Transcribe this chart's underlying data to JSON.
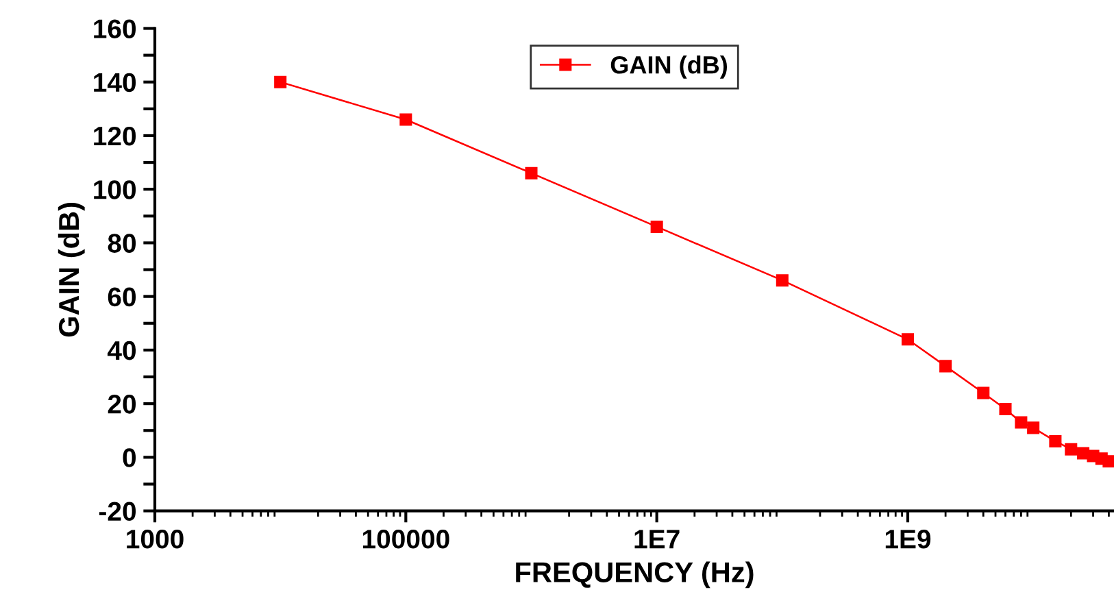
{
  "chart_data": {
    "type": "line",
    "xlabel": "FREQUENCY (Hz)",
    "ylabel": "GAIN (dB)",
    "log": "x",
    "x": [
      10000,
      100000,
      1000000,
      10000000,
      100000000,
      1000000000,
      2000000000,
      4000000000,
      6000000000,
      8000000000,
      10000000000,
      15000000000,
      20000000000,
      25000000000,
      30000000000,
      35000000000,
      40000000000
    ],
    "series": [
      {
        "name": "GAIN (dB)",
        "color": "#ff0000",
        "values": [
          140,
          126,
          106,
          86,
          66,
          44,
          34,
          24,
          18,
          13,
          11,
          6,
          3,
          1.5,
          0.5,
          -0.5,
          -1.5
        ]
      }
    ],
    "xlim": [
      1000,
      44000000000
    ],
    "xticks": [
      {
        "value": 1000,
        "label": "1000"
      },
      {
        "value": 100000,
        "label": "100000"
      },
      {
        "value": 10000000,
        "label": "1E7"
      },
      {
        "value": 1000000000,
        "label": "1E9"
      }
    ],
    "ylim": [
      -20,
      160
    ],
    "yticks": [
      -20,
      {
        "value": -10,
        "label": null
      },
      0,
      {
        "value": 10,
        "label": null
      },
      20,
      {
        "value": 30,
        "label": null
      },
      40,
      {
        "value": 50,
        "label": null
      },
      60,
      {
        "value": 70,
        "label": null
      },
      80,
      {
        "value": 90,
        "label": null
      },
      100,
      {
        "value": 110,
        "label": null
      },
      120,
      {
        "value": 130,
        "label": null
      },
      140,
      {
        "value": 150,
        "label": null
      },
      160
    ],
    "grid": false,
    "legend": "top",
    "marker": "square",
    "line_style": "solid"
  }
}
